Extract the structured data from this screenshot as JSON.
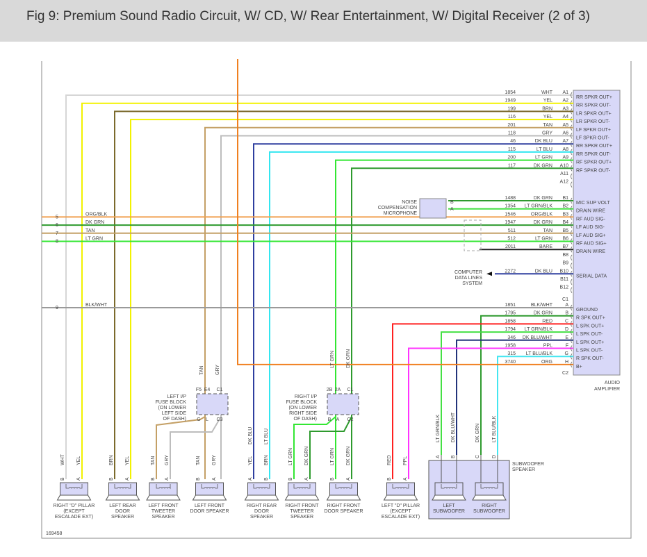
{
  "title": "Fig 9: Premium Sound Radio Circuit, W/ CD, W/ Rear Entertainment, W/ Digital Receiver (2 of 3)",
  "diagram_id": "169458",
  "wire_colors": {
    "WHT": "#d6d6d6",
    "YEL": "#f2f200",
    "BRN": "#7b6a2c",
    "TAN": "#c4a066",
    "GRY": "#bdbdbd",
    "DK BLU": "#2f3f9f",
    "LT BLU": "#33e6f0",
    "LT GRN": "#33e633",
    "DK GRN": "#2e9a2e",
    "LT GRN/BLK": "#44e044",
    "ORG/BLK": "#f0a050",
    "BARE": "#222222",
    "BLK/WHT": "#9a9a9a",
    "RED": "#ff2020",
    "DK BLU/WHT": "#22337a",
    "PPL": "#ff33ff",
    "LT BLU/BLK": "#44e6f0",
    "ORG": "#f08020"
  },
  "amplifier": {
    "label": [
      "AUDIO",
      "AMPLIFIER"
    ],
    "fill": "#d8d8f8",
    "connector_a": [
      {
        "pin": "A1",
        "circuit": "1854",
        "color": "WHT",
        "function": "RR SPKR OUT+"
      },
      {
        "pin": "A2",
        "circuit": "1949",
        "color": "YEL",
        "function": "RR SPKR OUT-"
      },
      {
        "pin": "A3",
        "circuit": "199",
        "color": "BRN",
        "function": "LR SPKR OUT+"
      },
      {
        "pin": "A4",
        "circuit": "116",
        "color": "YEL",
        "function": "LR SPKR OUT-"
      },
      {
        "pin": "A5",
        "circuit": "201",
        "color": "TAN",
        "function": "LF SPKR OUT+"
      },
      {
        "pin": "A6",
        "circuit": "118",
        "color": "GRY",
        "function": "LF SPKR OUT-"
      },
      {
        "pin": "A7",
        "circuit": "46",
        "color": "DK BLU",
        "function": "RR SPKR OUT+"
      },
      {
        "pin": "A8",
        "circuit": "115",
        "color": "LT BLU",
        "function": "RR SPKR OUT-"
      },
      {
        "pin": "A9",
        "circuit": "200",
        "color": "LT GRN",
        "function": "RF SPKR OUT+"
      },
      {
        "pin": "A10",
        "circuit": "117",
        "color": "DK GRN",
        "function": "RF SPKR OUT-"
      },
      {
        "pin": "A11",
        "circuit": "",
        "color": "",
        "function": ""
      },
      {
        "pin": "A12",
        "circuit": "",
        "color": "",
        "function": ""
      }
    ],
    "connector_b": [
      {
        "pin": "B1",
        "circuit": "1488",
        "color": "DK GRN",
        "function": "MIC SUP VOLT"
      },
      {
        "pin": "B2",
        "circuit": "1354",
        "color": "LT GRN/BLK",
        "function": "DRAIN WIRE"
      },
      {
        "pin": "B3",
        "circuit": "1546",
        "color": "ORG/BLK",
        "function": "RF AUD SIG-"
      },
      {
        "pin": "B4",
        "circuit": "1947",
        "color": "DK GRN",
        "function": "LF AUD SIG-"
      },
      {
        "pin": "B5",
        "circuit": "511",
        "color": "TAN",
        "function": "LF AUD SIG+"
      },
      {
        "pin": "B6",
        "circuit": "512",
        "color": "LT GRN",
        "function": "RF AUD SIG+"
      },
      {
        "pin": "B7",
        "circuit": "2011",
        "color": "BARE",
        "function": "DRAIN WIRE"
      },
      {
        "pin": "B8",
        "circuit": "",
        "color": "",
        "function": ""
      },
      {
        "pin": "B9",
        "circuit": "",
        "color": "",
        "function": ""
      },
      {
        "pin": "B10",
        "circuit": "2272",
        "color": "DK BLU",
        "function": "SERIAL DATA"
      },
      {
        "pin": "B11",
        "circuit": "",
        "color": "",
        "function": ""
      },
      {
        "pin": "B12",
        "circuit": "",
        "color": "",
        "function": ""
      }
    ],
    "connector_c_label": "C1",
    "connector_c": [
      {
        "pin": "A",
        "circuit": "1851",
        "color": "BLK/WHT",
        "function": "GROUND"
      },
      {
        "pin": "B",
        "circuit": "1795",
        "color": "DK GRN",
        "function": "R SPK OUT+"
      },
      {
        "pin": "C",
        "circuit": "1858",
        "color": "RED",
        "function": "L SPK OUT+"
      },
      {
        "pin": "D",
        "circuit": "1794",
        "color": "LT GRN/BLK",
        "function": "L SPK OUT-"
      },
      {
        "pin": "E",
        "circuit": "346",
        "color": "DK BLU/WHT",
        "function": "L SPK OUT+"
      },
      {
        "pin": "F",
        "circuit": "1958",
        "color": "PPL",
        "function": "L SPK OUT-"
      },
      {
        "pin": "G",
        "circuit": "315",
        "color": "LT BLU/BLK",
        "function": "R SPK OUT-"
      },
      {
        "pin": "H",
        "circuit": "3740",
        "color": "ORG",
        "function": "B+"
      }
    ],
    "connector_c_end_label": "C2"
  },
  "left_inputs": [
    {
      "ref": "5",
      "color": "ORG/BLK"
    },
    {
      "ref": "6",
      "color": "DK GRN"
    },
    {
      "ref": "7",
      "color": "TAN"
    },
    {
      "ref": "8",
      "color": "LT GRN"
    },
    {
      "ref": "9",
      "color": "BLK/WHT"
    }
  ],
  "microphone": {
    "label": [
      "NOISE",
      "COMPENSATION",
      "MICROPHONE"
    ],
    "pins": [
      "B",
      "A"
    ]
  },
  "computer": {
    "label": [
      "COMPUTER",
      "DATA LINES",
      "SYSTEM"
    ]
  },
  "mid_labels": [
    "TAN",
    "GRY",
    "DK BLU",
    "LT BLU",
    "LT GRN",
    "DK GRN"
  ],
  "fuse_blocks": [
    {
      "label": [
        "LEFT I/P",
        "FUSE BLOCK",
        "(ON LOWER",
        "LEFT SIDE",
        "OF DASH)"
      ],
      "top_pins": [
        "F5",
        "E4",
        "C1"
      ],
      "bottom_pins": [
        "G",
        "L",
        "C3"
      ]
    },
    {
      "label": [
        "RIGHT I/P",
        "FUSE BLOCK",
        "(ON LOWER",
        "RIGHT SIDE",
        "OF DASH)"
      ],
      "top_pins": [
        "2B",
        "2A",
        "C1"
      ],
      "bottom_pins": [
        "B",
        "A",
        "C2"
      ]
    }
  ],
  "speakers": [
    {
      "label": [
        "RIGHT \"D\" PILLAR",
        "(EXCEPT",
        "ESCALADE EXT)"
      ],
      "pins": [
        {
          "pin": "B",
          "color": "WHT"
        },
        {
          "pin": "A",
          "color": "YEL"
        }
      ]
    },
    {
      "label": [
        "LEFT REAR",
        "DOOR",
        "SPEAKER"
      ],
      "pins": [
        {
          "pin": "B",
          "color": "BRN"
        },
        {
          "pin": "A",
          "color": "YEL"
        }
      ]
    },
    {
      "label": [
        "LEFT FRONT",
        "TWEETER",
        "SPEAKER"
      ],
      "pins": [
        {
          "pin": "B",
          "color": "TAN"
        },
        {
          "pin": "A",
          "color": "GRY"
        }
      ]
    },
    {
      "label": [
        "LEFT FRONT",
        "DOOR SPEAKER"
      ],
      "pins": [
        {
          "pin": "B",
          "color": "TAN"
        },
        {
          "pin": "A",
          "color": "GRY"
        }
      ]
    },
    {
      "label": [
        "RIGHT REAR",
        "DOOR",
        "SPEAKER"
      ],
      "pins": [
        {
          "pin": "A",
          "color": "YEL"
        },
        {
          "pin": "B",
          "color": "BRN"
        }
      ]
    },
    {
      "label": [
        "RIGHT FRONT",
        "TWEETER",
        "SPEAKER"
      ],
      "pins": [
        {
          "pin": "B",
          "color": "LT GRN"
        },
        {
          "pin": "A",
          "color": "DK GRN"
        }
      ]
    },
    {
      "label": [
        "RIGHT FRONT",
        "DOOR SPEAKER"
      ],
      "pins": [
        {
          "pin": "B",
          "color": "LT GRN"
        },
        {
          "pin": "A",
          "color": "DK GRN"
        }
      ]
    },
    {
      "label": [
        "LEFT \"D\" PILLAR",
        "(EXCEPT",
        "ESCALADE EXT)"
      ],
      "pins": [
        {
          "pin": "B",
          "color": "RED"
        },
        {
          "pin": "A",
          "color": "PPL"
        }
      ]
    }
  ],
  "subwoofer": {
    "label": [
      "SUBWOOFER",
      "SPEAKER"
    ],
    "pins": [
      {
        "pin": "A",
        "color": "LT GRN/BLK"
      },
      {
        "pin": "B",
        "color": "DK BLU/WHT"
      },
      {
        "pin": "C",
        "color": "DK GRN"
      },
      {
        "pin": "D",
        "color": "LT BLU/BLK"
      }
    ],
    "units": [
      {
        "label": [
          "LEFT",
          "SUBWOOFER"
        ]
      },
      {
        "label": [
          "RIGHT",
          "SUBWOOFER"
        ]
      }
    ]
  }
}
